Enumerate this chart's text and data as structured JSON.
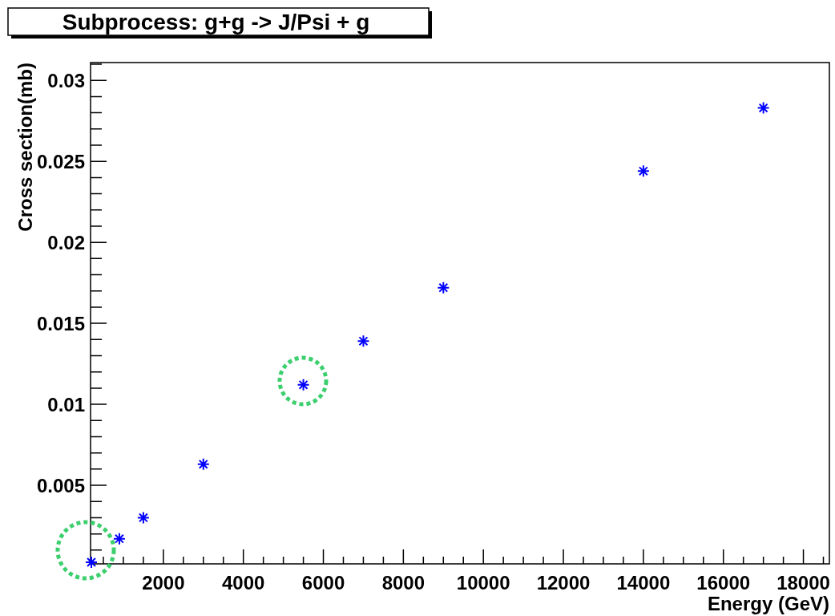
{
  "chart_data": {
    "type": "scatter",
    "title": "Subprocess: g+g -> J/Psi + g",
    "xlabel": "Energy (GeV)",
    "ylabel": "Cross section(mb)",
    "x": [
      200,
      900,
      1500,
      3000,
      5500,
      7000,
      9000,
      14000,
      17000
    ],
    "series": [
      {
        "color": "#0000ff",
        "values": [
          0.00025,
          0.0017,
          0.003,
          0.0063,
          0.0112,
          0.0139,
          0.0172,
          0.0244,
          0.0283
        ]
      }
    ],
    "marker": "cross",
    "xlim": [
      180,
      18650
    ],
    "ylim": [
      0.00015,
      0.0311
    ],
    "xticks": [
      2000,
      4000,
      6000,
      8000,
      10000,
      12000,
      14000,
      16000,
      18000
    ],
    "yticks": [
      0.005,
      0.01,
      0.015,
      0.02,
      0.025,
      0.03
    ],
    "grid": false
  }
}
